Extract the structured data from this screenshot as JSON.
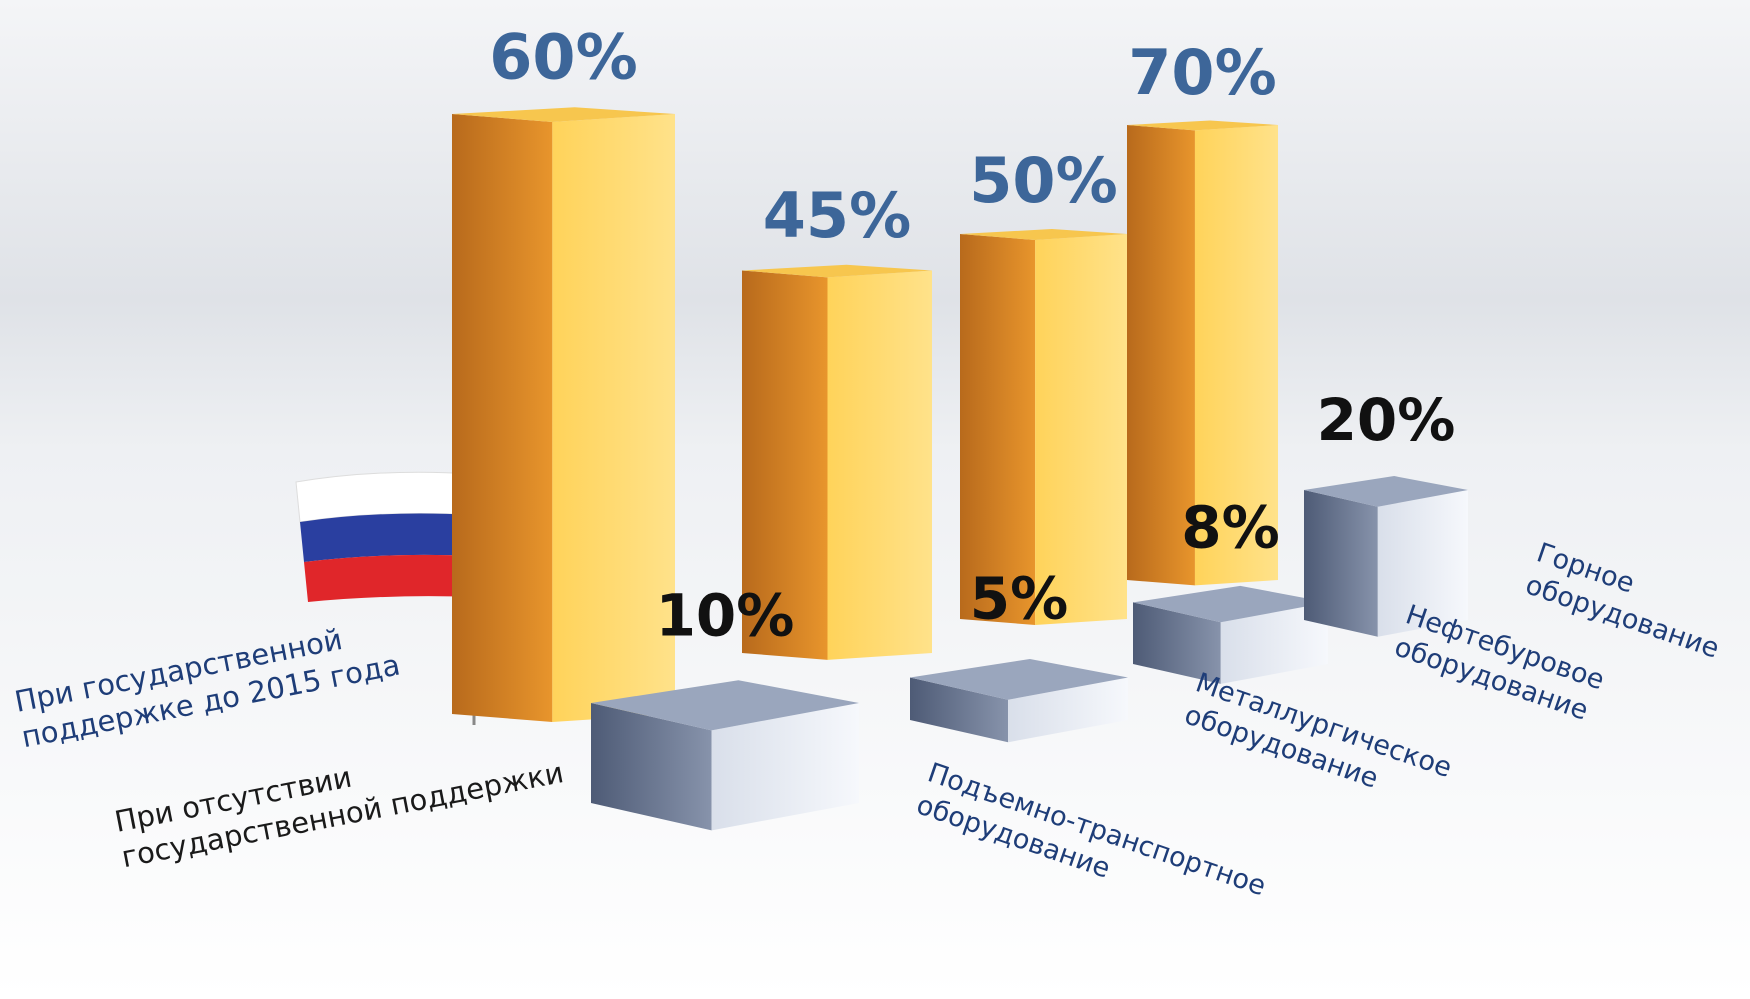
{
  "chart_data": {
    "type": "bar3d",
    "categories": [
      "Подъемно-транспортное оборудование",
      "Металлургическое оборудование",
      "Нефтебуровое оборудование",
      "Горное оборудование"
    ],
    "series": [
      {
        "name": "При государственной поддержке до 2015 года",
        "color": "#f2a22a",
        "values": [
          60,
          45,
          50,
          70
        ],
        "value_labels": [
          "60%",
          "45%",
          "50%",
          "70%"
        ]
      },
      {
        "name": "При отсутствии государственной поддержки",
        "color": "#6f7f9c",
        "values": [
          10,
          5,
          8,
          20
        ],
        "value_labels": [
          "10%",
          "5%",
          "8%",
          "20%"
        ]
      }
    ]
  }
}
